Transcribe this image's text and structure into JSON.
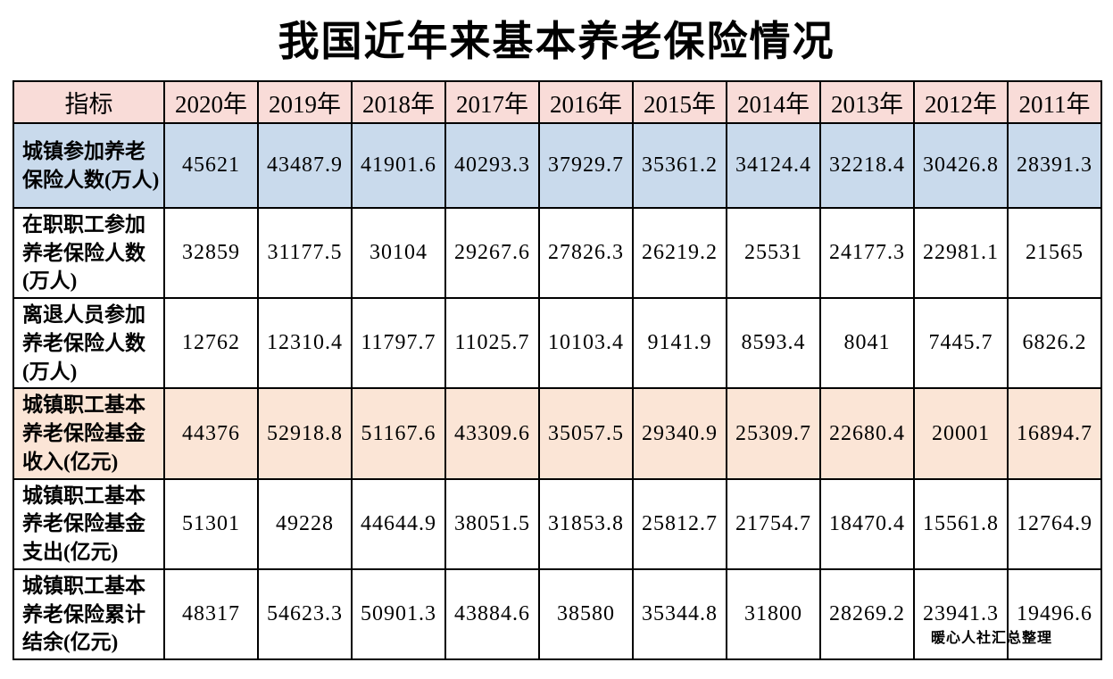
{
  "page": {
    "title": "我国近年来基本养老保险情况",
    "footer_credit": "暖心人社汇总整理"
  },
  "colors": {
    "header_bg": "#f9dcd8",
    "row_highlight_blue": "#c9daec",
    "row_highlight_peach": "#fbe5d6",
    "row_default": "#ffffff",
    "border": "#000000",
    "text": "#000000"
  },
  "chart_data": {
    "type": "table",
    "title": "我国近年来基本养老保险情况",
    "columns": [
      "指标",
      "2020年",
      "2019年",
      "2018年",
      "2017年",
      "2016年",
      "2015年",
      "2014年",
      "2013年",
      "2012年",
      "2011年"
    ],
    "rows": [
      {
        "indicator": "城镇参加养老保险人数(万人)",
        "highlight": "blue",
        "values": [
          45621,
          43487.9,
          41901.6,
          40293.3,
          37929.7,
          35361.2,
          34124.4,
          32218.4,
          30426.8,
          28391.3
        ]
      },
      {
        "indicator": "在职职工参加养老保险人数(万人)",
        "highlight": null,
        "values": [
          32859,
          31177.5,
          30104,
          29267.6,
          27826.3,
          26219.2,
          25531,
          24177.3,
          22981.1,
          21565
        ]
      },
      {
        "indicator": "离退人员参加养老保险人数(万人)",
        "highlight": null,
        "values": [
          12762,
          12310.4,
          11797.7,
          11025.7,
          10103.4,
          9141.9,
          8593.4,
          8041,
          7445.7,
          6826.2
        ]
      },
      {
        "indicator": "城镇职工基本养老保险基金收入(亿元)",
        "highlight": "peach",
        "values": [
          44376,
          52918.8,
          51167.6,
          43309.6,
          35057.5,
          29340.9,
          25309.7,
          22680.4,
          20001,
          16894.7
        ]
      },
      {
        "indicator": "城镇职工基本养老保险基金支出(亿元)",
        "highlight": null,
        "values": [
          51301,
          49228,
          44644.9,
          38051.5,
          31853.8,
          25812.7,
          21754.7,
          18470.4,
          15561.8,
          12764.9
        ]
      },
      {
        "indicator": "城镇职工基本养老保险累计结余(亿元)",
        "highlight": null,
        "values": [
          48317,
          54623.3,
          50901.3,
          43884.6,
          38580,
          35344.8,
          31800,
          28269.2,
          23941.3,
          19496.6
        ]
      }
    ],
    "source_note": "暖心人社汇总整理"
  }
}
